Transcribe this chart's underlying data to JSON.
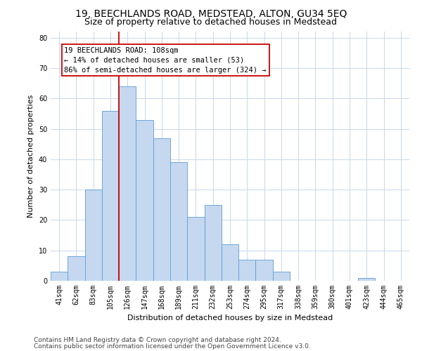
{
  "title": "19, BEECHLANDS ROAD, MEDSTEAD, ALTON, GU34 5EQ",
  "subtitle": "Size of property relative to detached houses in Medstead",
  "xlabel": "Distribution of detached houses by size in Medstead",
  "ylabel": "Number of detached properties",
  "categories": [
    "41sqm",
    "62sqm",
    "83sqm",
    "105sqm",
    "126sqm",
    "147sqm",
    "168sqm",
    "189sqm",
    "211sqm",
    "232sqm",
    "253sqm",
    "274sqm",
    "295sqm",
    "317sqm",
    "338sqm",
    "359sqm",
    "380sqm",
    "401sqm",
    "423sqm",
    "444sqm",
    "465sqm"
  ],
  "values": [
    3,
    8,
    30,
    56,
    64,
    53,
    47,
    39,
    21,
    25,
    12,
    7,
    7,
    3,
    0,
    0,
    0,
    0,
    1,
    0,
    0
  ],
  "bar_color": "#c5d8f0",
  "bar_edge_color": "#5b9bd5",
  "vline_x": 3.5,
  "vline_color": "#cc0000",
  "annotation_line1": "19 BEECHLANDS ROAD: 108sqm",
  "annotation_line2": "← 14% of detached houses are smaller (53)",
  "annotation_line3": "86% of semi-detached houses are larger (324) →",
  "annotation_box_color": "#cc0000",
  "ylim": [
    0,
    82
  ],
  "yticks": [
    0,
    10,
    20,
    30,
    40,
    50,
    60,
    70,
    80
  ],
  "footer1": "Contains HM Land Registry data © Crown copyright and database right 2024.",
  "footer2": "Contains public sector information licensed under the Open Government Licence v3.0.",
  "title_fontsize": 10,
  "subtitle_fontsize": 9,
  "axis_label_fontsize": 8,
  "tick_fontsize": 7,
  "annotation_fontsize": 7.5,
  "footer_fontsize": 6.5,
  "bg_color": "#ffffff",
  "grid_color": "#c8d8e8"
}
